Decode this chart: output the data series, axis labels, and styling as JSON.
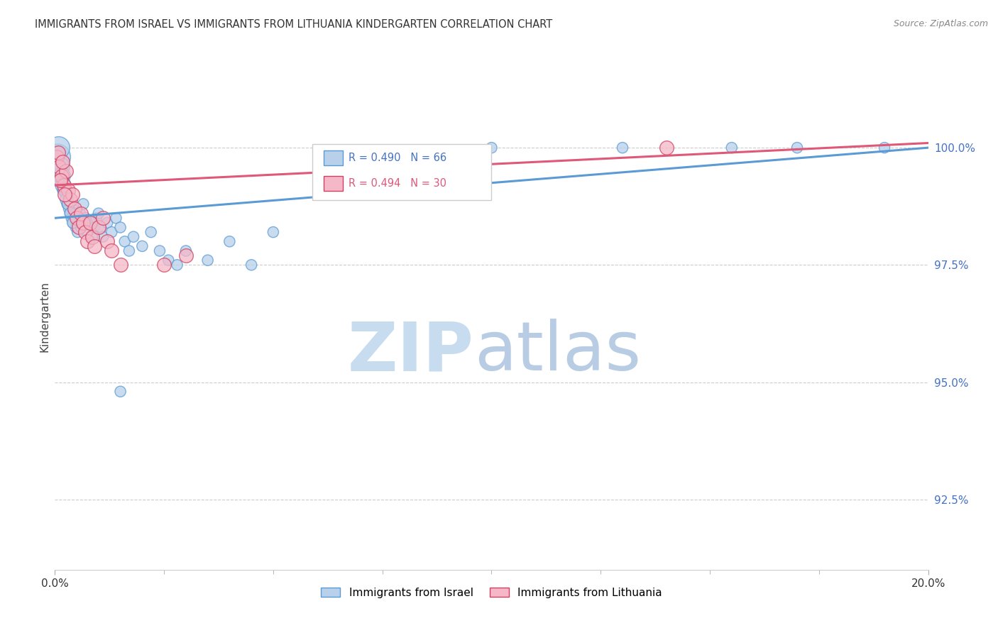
{
  "title": "IMMIGRANTS FROM ISRAEL VS IMMIGRANTS FROM LITHUANIA KINDERGARTEN CORRELATION CHART",
  "source": "Source: ZipAtlas.com",
  "ylabel": "Kindergarten",
  "ytick_values": [
    92.5,
    95.0,
    97.5,
    100.0
  ],
  "xmin": 0.0,
  "xmax": 20.0,
  "ymin": 91.0,
  "ymax": 101.8,
  "legend_israel": "Immigrants from Israel",
  "legend_lithuania": "Immigrants from Lithuania",
  "R_israel": 0.49,
  "N_israel": 66,
  "R_lithuania": 0.494,
  "N_lithuania": 30,
  "color_israel": "#b8d0ea",
  "color_israel_line": "#5b9bd5",
  "color_israel_edge": "#5b9bd5",
  "color_lithuania": "#f4b8c8",
  "color_lithuania_line": "#e05878",
  "color_lithuania_edge": "#d04060",
  "israel_x": [
    0.05,
    0.08,
    0.1,
    0.12,
    0.15,
    0.18,
    0.2,
    0.22,
    0.25,
    0.28,
    0.3,
    0.32,
    0.35,
    0.38,
    0.4,
    0.42,
    0.45,
    0.48,
    0.5,
    0.52,
    0.55,
    0.58,
    0.6,
    0.65,
    0.7,
    0.75,
    0.8,
    0.85,
    0.9,
    0.95,
    1.0,
    1.05,
    1.1,
    1.2,
    1.3,
    1.4,
    1.5,
    1.6,
    1.7,
    1.8,
    2.0,
    2.2,
    2.4,
    2.6,
    2.8,
    3.0,
    3.5,
    4.0,
    4.5,
    5.0,
    0.06,
    0.09,
    0.13,
    0.16,
    0.19,
    0.23,
    0.27,
    0.31,
    0.36,
    0.41,
    10.0,
    13.0,
    15.5,
    17.0,
    19.0,
    1.5
  ],
  "israel_y": [
    99.9,
    99.7,
    99.5,
    99.6,
    99.3,
    99.1,
    99.4,
    99.2,
    99.0,
    98.8,
    98.9,
    98.7,
    98.6,
    98.5,
    98.7,
    98.4,
    98.6,
    98.3,
    98.5,
    98.2,
    98.4,
    98.6,
    98.3,
    98.8,
    98.5,
    98.2,
    98.4,
    98.1,
    98.3,
    98.5,
    98.6,
    98.3,
    98.1,
    98.4,
    98.2,
    98.5,
    98.3,
    98.0,
    97.8,
    98.1,
    97.9,
    98.2,
    97.8,
    97.6,
    97.5,
    97.8,
    97.6,
    98.0,
    97.5,
    98.2,
    99.8,
    100.0,
    99.6,
    99.4,
    99.2,
    99.1,
    98.9,
    98.8,
    98.6,
    98.4,
    100.0,
    100.0,
    100.0,
    100.0,
    100.0,
    94.8
  ],
  "israel_sizes": [
    200,
    150,
    120,
    120,
    120,
    120,
    120,
    120,
    120,
    120,
    120,
    120,
    120,
    120,
    120,
    120,
    120,
    120,
    120,
    120,
    120,
    120,
    120,
    120,
    120,
    120,
    120,
    120,
    120,
    120,
    120,
    120,
    120,
    120,
    120,
    120,
    120,
    120,
    120,
    120,
    120,
    120,
    120,
    120,
    120,
    120,
    120,
    120,
    120,
    120,
    700,
    500,
    350,
    300,
    250,
    200,
    180,
    160,
    140,
    130,
    120,
    120,
    120,
    120,
    120,
    120
  ],
  "lithuania_x": [
    0.05,
    0.1,
    0.15,
    0.2,
    0.25,
    0.3,
    0.35,
    0.4,
    0.45,
    0.5,
    0.55,
    0.6,
    0.65,
    0.7,
    0.75,
    0.8,
    0.85,
    0.9,
    1.0,
    1.1,
    1.2,
    1.3,
    1.5,
    2.5,
    3.0,
    0.08,
    0.13,
    0.18,
    0.23,
    14.0
  ],
  "lithuania_y": [
    99.8,
    99.6,
    99.4,
    99.2,
    99.5,
    99.1,
    98.9,
    99.0,
    98.7,
    98.5,
    98.3,
    98.6,
    98.4,
    98.2,
    98.0,
    98.4,
    98.1,
    97.9,
    98.3,
    98.5,
    98.0,
    97.8,
    97.5,
    97.5,
    97.7,
    99.9,
    99.3,
    99.7,
    99.0,
    100.0
  ]
}
